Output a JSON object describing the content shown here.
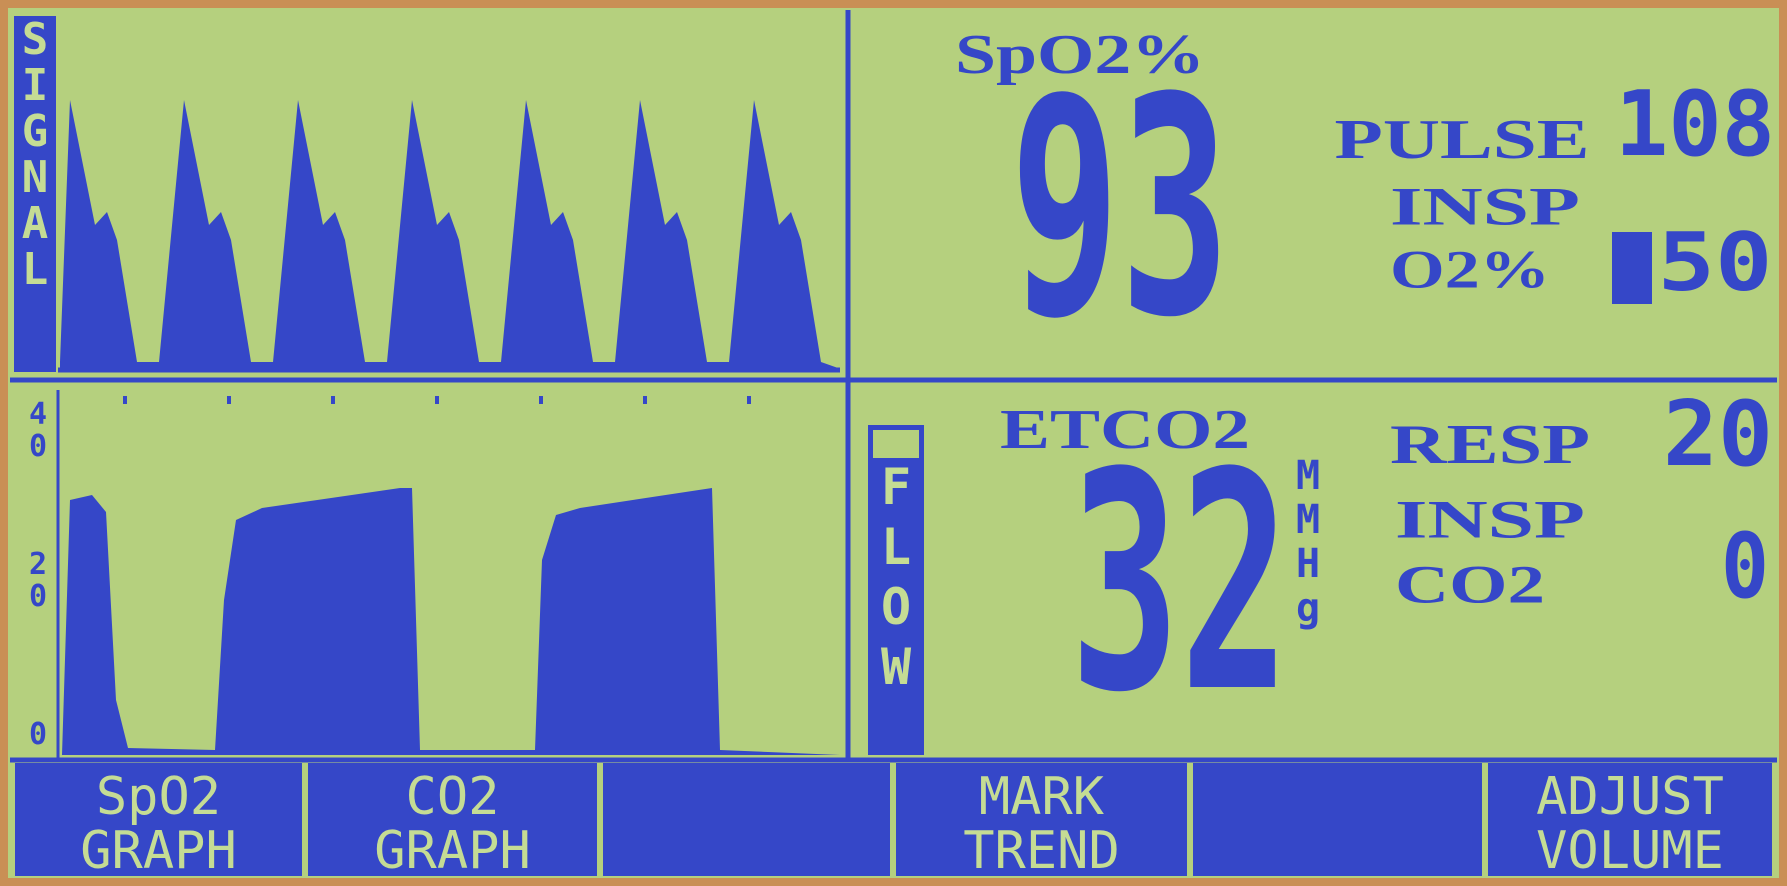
{
  "monitor": {
    "signal_label": "SIGNAL",
    "spo2": {
      "label": "SpO2%",
      "value": "93"
    },
    "pulse": {
      "label": "PULSE",
      "value": "108"
    },
    "insp_o2": {
      "label_lines": [
        "INSP",
        "O2%"
      ],
      "value": "50"
    },
    "co2_axis": [
      "40",
      "20",
      "0"
    ],
    "flow_label": "FLOW",
    "etco2": {
      "label": "ETCO2",
      "value": "32",
      "unit": "MMHg"
    },
    "resp": {
      "label": "RESP",
      "value": "20"
    },
    "insp_co2": {
      "label_lines": [
        "INSP",
        "CO2"
      ],
      "value": "0"
    },
    "buttons": [
      [
        "SpO2",
        "GRAPH"
      ],
      [
        "CO2",
        "GRAPH"
      ],
      [
        "MARK",
        "TREND"
      ],
      [
        "ADJUST",
        "VOLUME"
      ]
    ]
  }
}
